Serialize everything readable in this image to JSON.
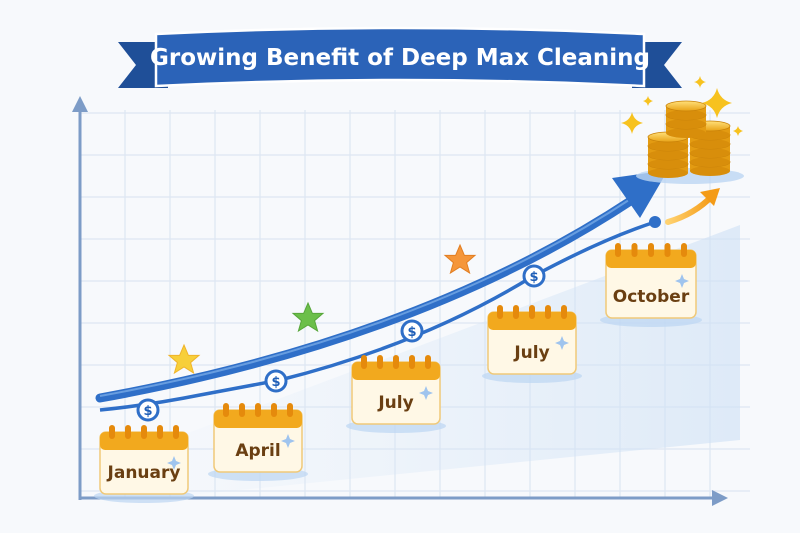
{
  "title": "Growing Benefit of Deep Max Cleaning",
  "calendars": [
    {
      "label": "January"
    },
    {
      "label": "April"
    },
    {
      "label": "July"
    },
    {
      "label": "July"
    },
    {
      "label": "October"
    }
  ],
  "currency_symbol": "$",
  "colors": {
    "accent_blue": "#2f6fc8",
    "banner_blue": "#2b63b8",
    "calendar_orange": "#f2a91e",
    "calendar_paper": "#fff8e6",
    "coin_gold": "#f5bd2a",
    "grid_line": "#d9e3f0",
    "axis": "#7d9cc7"
  },
  "icons": [
    "star-icon",
    "coin-stack-icon",
    "sparkle-icon",
    "calendar-icon",
    "dollar-marker-icon",
    "trend-arrow-icon"
  ]
}
